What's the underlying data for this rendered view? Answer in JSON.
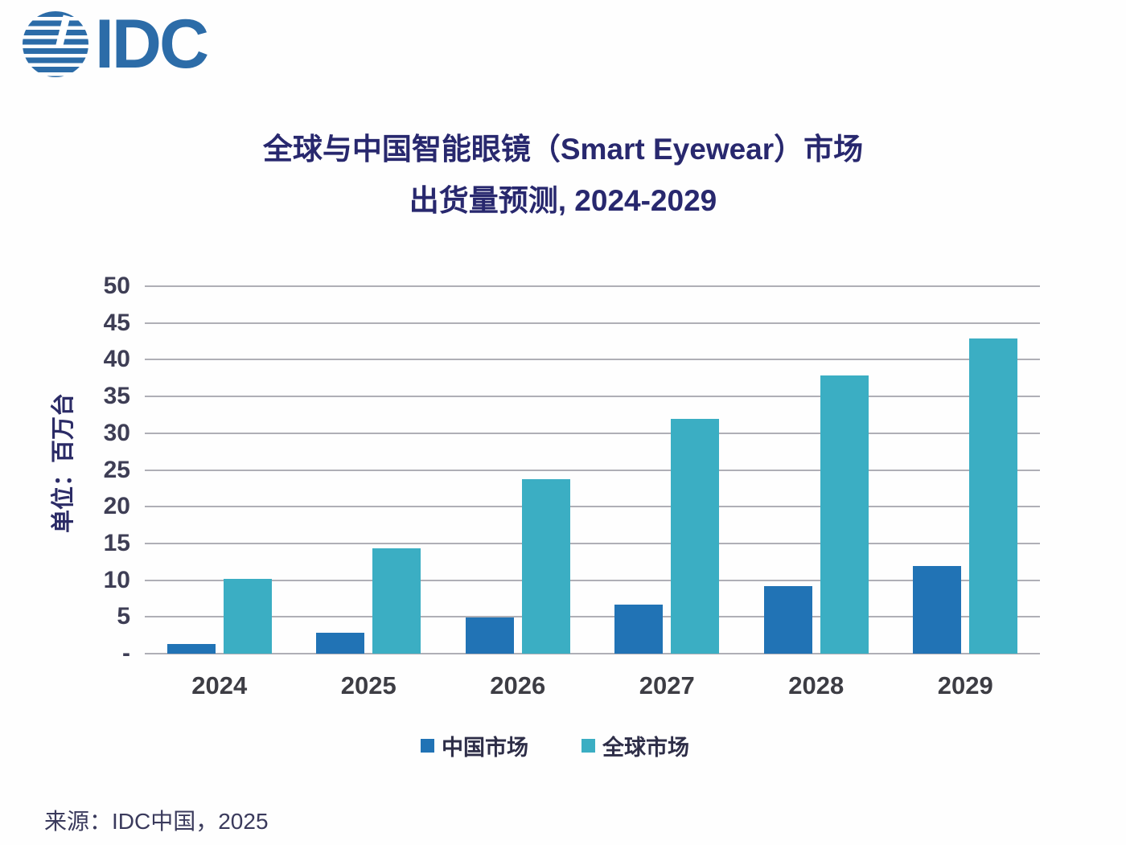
{
  "logo": {
    "text": "IDC"
  },
  "title": {
    "line1": "全球与中国智能眼镜（Smart Eyewear）市场",
    "line2": "出货量预测, 2024-2029"
  },
  "source": "来源：IDC中国，2025",
  "colors": {
    "logo_blue": "#2C6CA8",
    "title_text": "#28286E",
    "grid": "#AFAFB6",
    "china_bar": "#2173B5",
    "global_bar": "#3BAEC3"
  },
  "chart_data": {
    "type": "bar",
    "title": "全球与中国智能眼镜（Smart Eyewear）市场出货量预测, 2024-2029",
    "categories": [
      "2024",
      "2025",
      "2026",
      "2027",
      "2028",
      "2029"
    ],
    "series": [
      {
        "key": "china-market",
        "name": "中国市场",
        "color": "#2173B5",
        "values": [
          1.3,
          2.9,
          4.9,
          6.7,
          9.2,
          11.9
        ]
      },
      {
        "key": "global-market",
        "name": "全球市场",
        "color": "#3BAEC3",
        "values": [
          10.2,
          14.3,
          23.7,
          32.0,
          37.9,
          42.9
        ]
      }
    ],
    "ylabel": "单位：百万台",
    "xlabel": "",
    "ylim": [
      0,
      50
    ],
    "ytick_step": 5,
    "ytick_labels": [
      "-",
      "5",
      "10",
      "15",
      "20",
      "25",
      "30",
      "35",
      "40",
      "45",
      "50"
    ],
    "grid": true,
    "legend_position": "bottom"
  }
}
